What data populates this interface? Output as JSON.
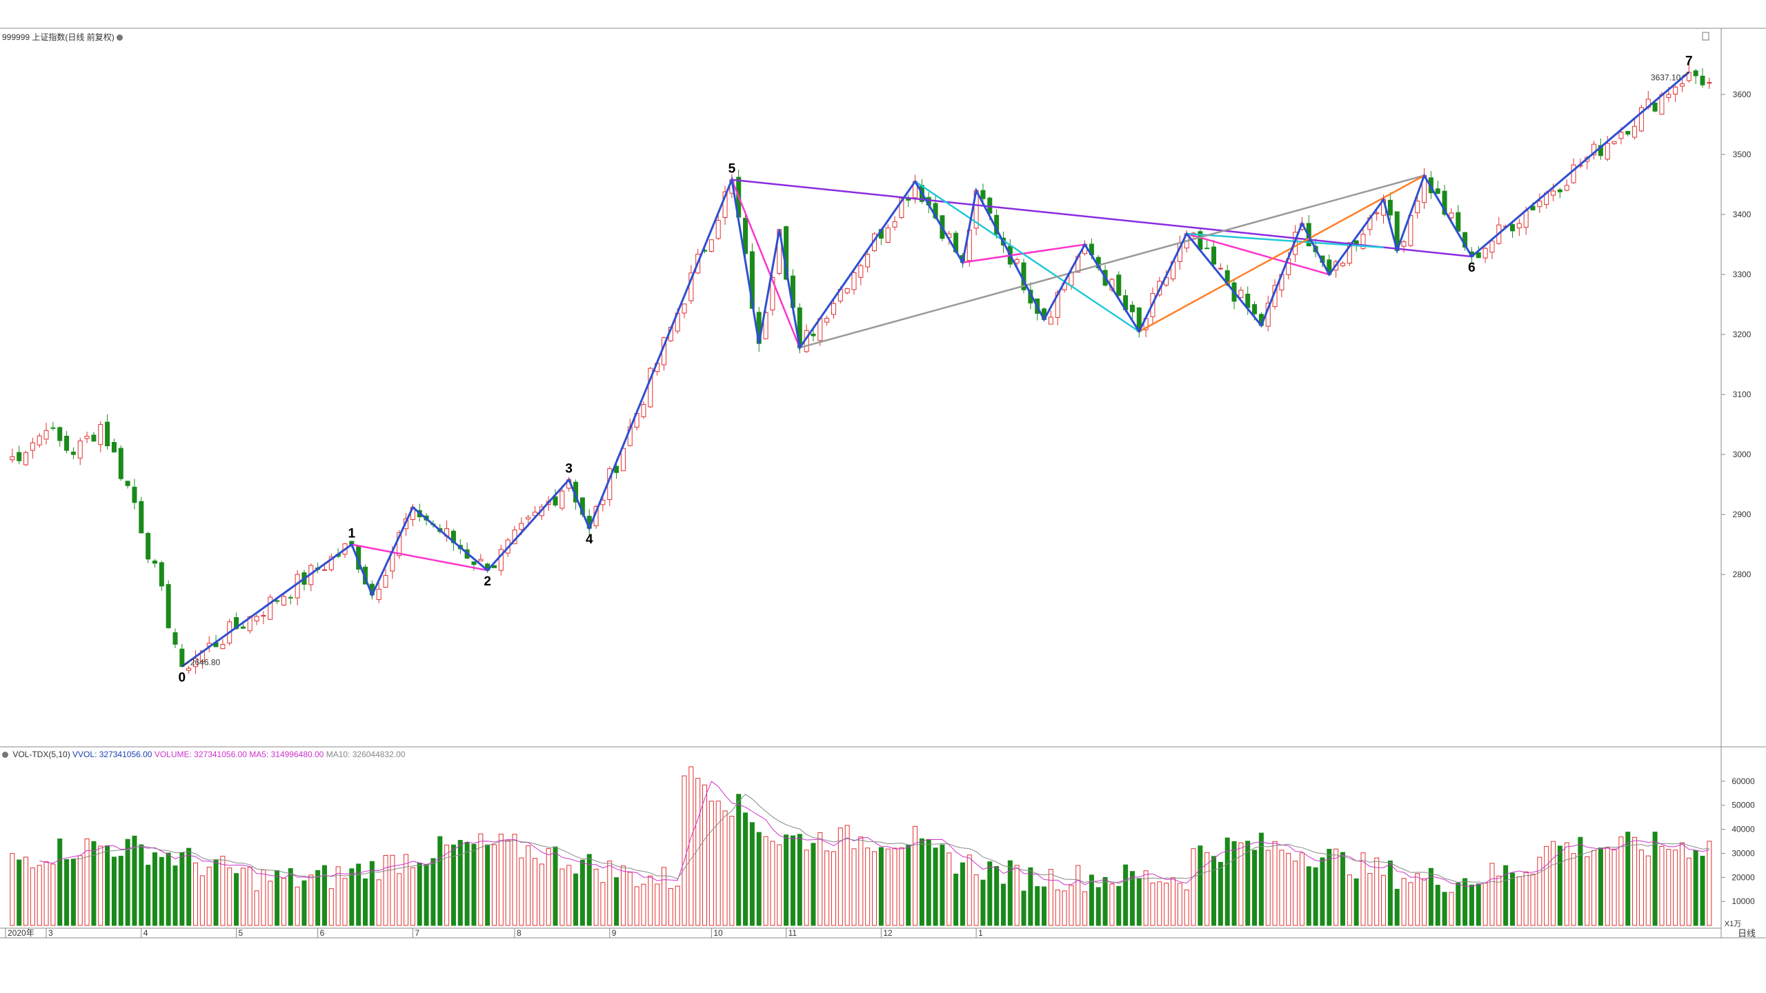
{
  "header": {
    "title": "999999 上证指数(日线 前复权)",
    "volume_legend": {
      "name": "VOL-TDX(5,10)",
      "vvol": "VVOL: 327341056.00",
      "volume": "VOLUME: 327341056.00",
      "ma5": "MA5: 314996480.00",
      "ma10": "MA10: 326044832.00"
    }
  },
  "chart_data": [
    {
      "type": "candlestick",
      "title": "999999 上证指数(日线 前复权)",
      "ylim": [
        2560,
        3700
      ],
      "yticks": [
        2800,
        2900,
        3000,
        3100,
        3200,
        3300,
        3400,
        3500,
        3600
      ],
      "annotations": {
        "low": "2646.80",
        "high": "3637.10"
      },
      "wave_labels": [
        "0",
        "1",
        "2",
        "3",
        "4",
        "5",
        "6",
        "7"
      ],
      "colors": {
        "up": "#e03030",
        "down": "#1a8a1a",
        "wave": "#2e4fd0",
        "magenta": "#ff33cc",
        "purple": "#8a2be2",
        "cyan": "#20c8d8",
        "gray": "#999999",
        "orange": "#ff7f27"
      },
      "x_axis_labels": [
        "2020年",
        "3",
        "4",
        "5",
        "6",
        "7",
        "8",
        "9",
        "10",
        "11",
        "12",
        "1"
      ],
      "axis_unit_label": "日线",
      "wave_points": [
        {
          "label": "0",
          "day": 26,
          "price": 2646.8
        },
        {
          "label": "1",
          "day": 51,
          "price": 2850
        },
        {
          "label": "",
          "day": 54,
          "price": 2766
        },
        {
          "label": "",
          "day": 60,
          "price": 2912
        },
        {
          "label": "2",
          "day": 71,
          "price": 2807
        },
        {
          "label": "3",
          "day": 83,
          "price": 2958
        },
        {
          "label": "4",
          "day": 86,
          "price": 2877
        },
        {
          "label": "5",
          "day": 107,
          "price": 3458
        },
        {
          "label": "",
          "day": 111,
          "price": 3185
        },
        {
          "label": "",
          "day": 114,
          "price": 3375
        },
        {
          "label": "",
          "day": 117,
          "price": 3178
        },
        {
          "label": "",
          "day": 134,
          "price": 3455
        },
        {
          "label": "",
          "day": 141,
          "price": 3320
        },
        {
          "label": "",
          "day": 143,
          "price": 3440
        },
        {
          "label": "",
          "day": 153,
          "price": 3225
        },
        {
          "label": "",
          "day": 159,
          "price": 3350
        },
        {
          "label": "",
          "day": 167,
          "price": 3205
        },
        {
          "label": "",
          "day": 174,
          "price": 3368
        },
        {
          "label": "",
          "day": 185,
          "price": 3215
        },
        {
          "label": "",
          "day": 191,
          "price": 3385
        },
        {
          "label": "",
          "day": 195,
          "price": 3300
        },
        {
          "label": "",
          "day": 203,
          "price": 3425
        },
        {
          "label": "",
          "day": 205,
          "price": 3340
        },
        {
          "label": "",
          "day": 209,
          "price": 3465
        },
        {
          "label": "6",
          "day": 216,
          "price": 3330
        },
        {
          "label": "7",
          "day": 248,
          "price": 3637.1
        }
      ],
      "trend_lines": [
        {
          "color": "purple",
          "from": [
            107,
            3458
          ],
          "to": [
            216,
            3330
          ]
        },
        {
          "color": "magenta",
          "from": [
            51,
            2850
          ],
          "to": [
            71,
            2807
          ]
        },
        {
          "color": "magenta",
          "from": [
            107,
            3458
          ],
          "to": [
            117,
            3178
          ]
        },
        {
          "color": "magenta",
          "from": [
            141,
            3320
          ],
          "to": [
            159,
            3350
          ]
        },
        {
          "color": "magenta",
          "from": [
            174,
            3368
          ],
          "to": [
            195,
            3300
          ]
        },
        {
          "color": "cyan",
          "from": [
            134,
            3455
          ],
          "to": [
            167,
            3205
          ]
        },
        {
          "color": "cyan",
          "from": [
            174,
            3368
          ],
          "to": [
            203,
            3345
          ]
        },
        {
          "color": "gray",
          "from": [
            117,
            3178
          ],
          "to": [
            209,
            3465
          ]
        },
        {
          "color": "orange",
          "from": [
            167,
            3205
          ],
          "to": [
            209,
            3465
          ]
        }
      ]
    },
    {
      "type": "bar",
      "title": "VOL-TDX(5,10)",
      "ylim": [
        0,
        68000
      ],
      "yticks": [
        10000,
        20000,
        30000,
        40000,
        50000,
        60000
      ],
      "yunit_label": "X1万"
    }
  ]
}
